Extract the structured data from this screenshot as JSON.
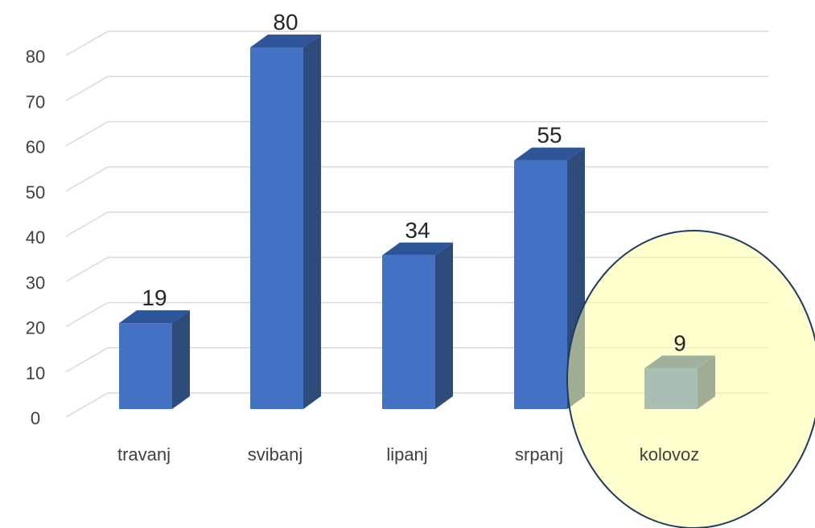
{
  "chart_data": {
    "type": "bar",
    "categories": [
      "travanj",
      "svibanj",
      "lipanj",
      "srpanj",
      "kolovoz"
    ],
    "values": [
      19,
      80,
      34,
      55,
      9
    ],
    "data_labels": [
      "19",
      "80",
      "34",
      "55",
      "9"
    ],
    "title": "",
    "xlabel": "",
    "ylabel": "",
    "ylim": [
      0,
      80
    ],
    "y_ticks": [
      0,
      10,
      20,
      30,
      40,
      50,
      60,
      70,
      80
    ],
    "grid": true,
    "style": "3d-column",
    "colors": {
      "bar_front": "#4472C4",
      "bar_side": "#2F4B7C",
      "bar_top": "#2E5597",
      "highlight_fill": "#FFFFA6",
      "highlight_stroke": "#1F3864",
      "grid": "#D9D9D9",
      "text": "#404040"
    },
    "highlighted_category": "kolovoz"
  }
}
